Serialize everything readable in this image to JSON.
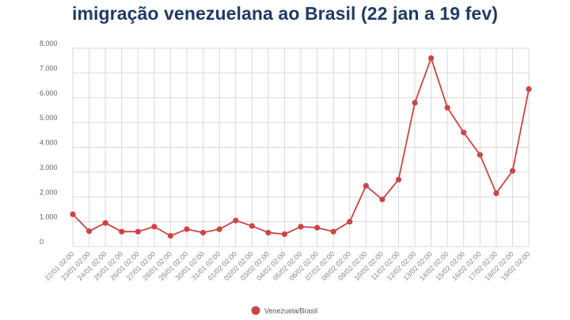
{
  "chart_data": {
    "type": "line",
    "title": "imigração venezuelana ao Brasil (22 jan a 19 fev)",
    "xlabel": "",
    "ylabel": "",
    "ylim": [
      0,
      8000
    ],
    "yticks": [
      {
        "value": 0,
        "label": "0"
      },
      {
        "value": 1000,
        "label": "1.000"
      },
      {
        "value": 2000,
        "label": "2.000"
      },
      {
        "value": 3000,
        "label": "3.000"
      },
      {
        "value": 4000,
        "label": "4.000"
      },
      {
        "value": 5000,
        "label": "5.000"
      },
      {
        "value": 6000,
        "label": "6.000"
      },
      {
        "value": 7000,
        "label": "7.000"
      },
      {
        "value": 8000,
        "label": "8.000"
      }
    ],
    "grid": true,
    "legend_position": "bottom-center",
    "categories": [
      "22/01 02:00",
      "23/01 02:00",
      "24/01 02:00",
      "25/01 02:00",
      "26/01 02:00",
      "27/01 02:00",
      "28/01 02:00",
      "29/01 02:00",
      "30/01 02:00",
      "31/01 02:00",
      "01/02 02:00",
      "02/02 02:00",
      "03/02 02:00",
      "04/02 02:00",
      "05/02 02:00",
      "06/02 02:00",
      "07/02 02:00",
      "08/02 02:00",
      "09/02 02:00",
      "10/02 02:00",
      "11/02 02:00",
      "12/02 02:00",
      "13/02 02:00",
      "14/02 02:00",
      "15/02 02:00",
      "16/02 02:00",
      "17/02 02:00",
      "18/02 02:00",
      "19/02 02:00"
    ],
    "series": [
      {
        "name": "Venezuela/Brasil",
        "color": "#cc4444",
        "values": [
          1300,
          620,
          950,
          600,
          600,
          800,
          430,
          700,
          560,
          700,
          1050,
          830,
          560,
          500,
          800,
          760,
          600,
          1000,
          2450,
          1900,
          2700,
          5800,
          7600,
          5600,
          4600,
          3700,
          2150,
          3050,
          6350
        ]
      }
    ]
  }
}
